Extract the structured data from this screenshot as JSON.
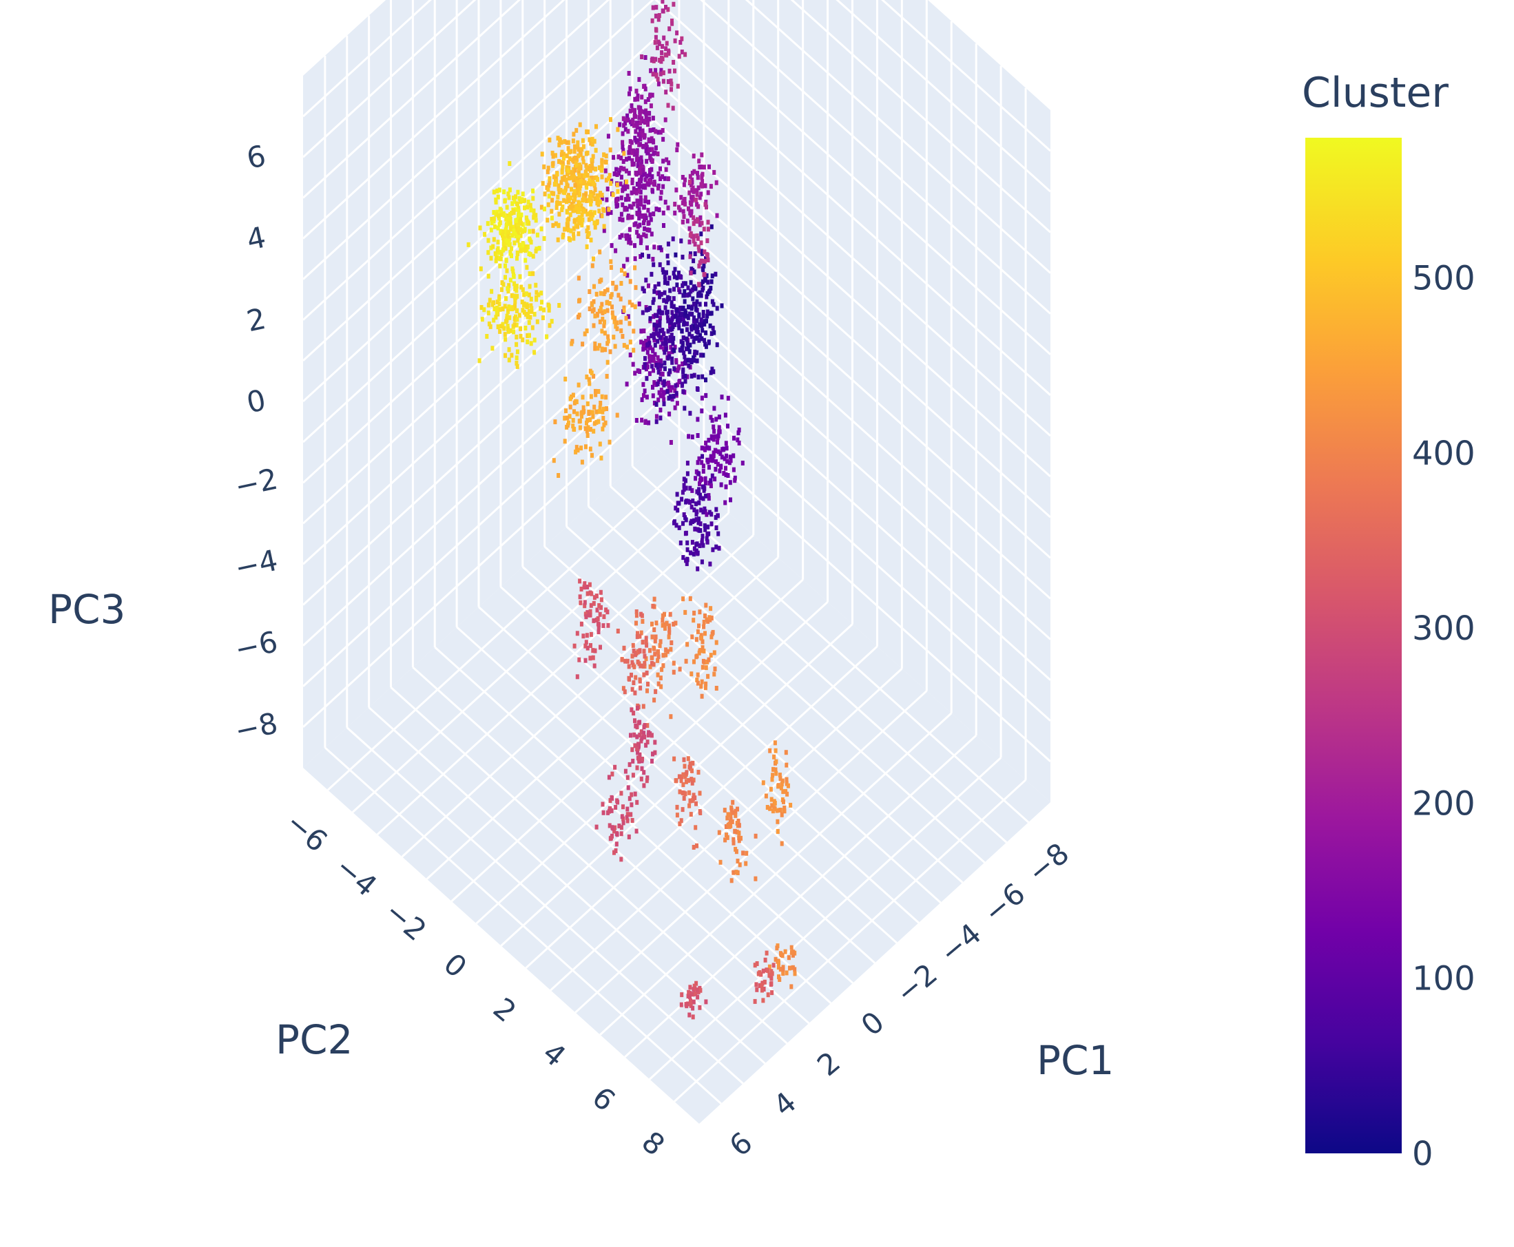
{
  "chart_data": {
    "type": "scatter3d",
    "xlabel": "PC1",
    "ylabel": "PC2",
    "zlabel": "PC3",
    "x_ticks": [
      "−8",
      "−6",
      "−4",
      "−2",
      "0",
      "2",
      "4",
      "6"
    ],
    "y_ticks": [
      "−6",
      "−4",
      "−2",
      "0",
      "2",
      "4",
      "6",
      "8"
    ],
    "z_ticks": [
      "−8",
      "−6",
      "−4",
      "−2",
      "0",
      "2",
      "4",
      "6"
    ],
    "xlim": [
      -9,
      7
    ],
    "ylim": [
      -7,
      9
    ],
    "zlim": [
      -9,
      8
    ],
    "colorbar": {
      "title": "Cluster",
      "range": [
        0,
        580
      ],
      "ticks": [
        "0",
        "100",
        "200",
        "300",
        "400",
        "500"
      ],
      "colorscale": "plasma"
    },
    "clusters": [
      {
        "x": -7,
        "y": -5,
        "z": -5,
        "c": 150,
        "spread": [
          0.7,
          0.7,
          1.2
        ],
        "n": 140
      },
      {
        "x": -6,
        "y": -5,
        "z": 0,
        "c": 160,
        "spread": [
          0.8,
          0.6,
          1.6
        ],
        "n": 220
      },
      {
        "x": -5,
        "y": -4,
        "z": 2,
        "c": 180,
        "spread": [
          0.6,
          0.6,
          1.4
        ],
        "n": 140
      },
      {
        "x": -5,
        "y": -3,
        "z": 5,
        "c": 240,
        "spread": [
          0.4,
          0.4,
          1.2
        ],
        "n": 70
      },
      {
        "x": -5,
        "y": -1,
        "z": -4,
        "c": 130,
        "spread": [
          0.6,
          0.6,
          1.0
        ],
        "n": 110
      },
      {
        "x": -4,
        "y": -2,
        "z": -1,
        "c": 60,
        "spread": [
          0.6,
          0.7,
          1.5
        ],
        "n": 200
      },
      {
        "x": -4,
        "y": -1,
        "z": 3,
        "c": 200,
        "spread": [
          0.5,
          0.5,
          1.0
        ],
        "n": 80
      },
      {
        "x": -3,
        "y": 0,
        "z": -4,
        "c": 70,
        "spread": [
          0.6,
          0.6,
          1.0
        ],
        "n": 110
      },
      {
        "x": -3,
        "y": 0,
        "z": 1,
        "c": 40,
        "spread": [
          0.6,
          0.6,
          1.3
        ],
        "n": 160
      },
      {
        "x": -2,
        "y": 1,
        "z": 4,
        "c": 250,
        "spread": [
          0.3,
          0.3,
          0.9
        ],
        "n": 40
      },
      {
        "x": -1,
        "y": -3,
        "z": 4,
        "c": 490,
        "spread": [
          1.0,
          0.8,
          0.6
        ],
        "n": 180
      },
      {
        "x": 0,
        "y": -2,
        "z": 4,
        "c": 510,
        "spread": [
          1.0,
          0.8,
          0.6
        ],
        "n": 180
      },
      {
        "x": 0,
        "y": -1,
        "z": 2,
        "c": 460,
        "spread": [
          0.8,
          0.8,
          0.8
        ],
        "n": 100
      },
      {
        "x": 2,
        "y": -3,
        "z": 4,
        "c": 560,
        "spread": [
          0.9,
          0.6,
          0.6
        ],
        "n": 220
      },
      {
        "x": 3,
        "y": -2,
        "z": 3,
        "c": 545,
        "spread": [
          0.9,
          0.8,
          0.7
        ],
        "n": 160
      },
      {
        "x": 2,
        "y": 0,
        "z": 1,
        "c": 470,
        "spread": [
          0.8,
          0.6,
          0.8
        ],
        "n": 90
      },
      {
        "x": 0,
        "y": 3,
        "z": -4,
        "c": 420,
        "spread": [
          0.4,
          0.4,
          1.0
        ],
        "n": 60
      },
      {
        "x": 2,
        "y": 3,
        "z": -3,
        "c": 400,
        "spread": [
          0.4,
          0.4,
          1.0
        ],
        "n": 60
      },
      {
        "x": 3,
        "y": 3,
        "z": -3,
        "c": 360,
        "spread": [
          0.4,
          0.4,
          1.0
        ],
        "n": 60
      },
      {
        "x": 4,
        "y": 2,
        "z": -2,
        "c": 320,
        "spread": [
          0.4,
          0.4,
          1.0
        ],
        "n": 60
      },
      {
        "x": 4,
        "y": 4,
        "z": -4,
        "c": 300,
        "spread": [
          0.4,
          0.4,
          1.0
        ],
        "n": 60
      },
      {
        "x": 0,
        "y": 6,
        "z": -6,
        "c": 430,
        "spread": [
          0.4,
          0.4,
          0.9
        ],
        "n": 50
      },
      {
        "x": 2,
        "y": 6,
        "z": -6,
        "c": 410,
        "spread": [
          0.4,
          0.4,
          0.9
        ],
        "n": 50
      },
      {
        "x": 3,
        "y": 5,
        "z": -5,
        "c": 370,
        "spread": [
          0.4,
          0.4,
          0.9
        ],
        "n": 50
      },
      {
        "x": 5,
        "y": 4,
        "z": -5,
        "c": 310,
        "spread": [
          0.4,
          0.4,
          0.9
        ],
        "n": 50
      },
      {
        "x": 2,
        "y": 8,
        "z": -8,
        "c": 420,
        "spread": [
          0.4,
          0.3,
          0.4
        ],
        "n": 30
      },
      {
        "x": 3,
        "y": 8,
        "z": -8,
        "c": 340,
        "spread": [
          0.4,
          0.3,
          0.4
        ],
        "n": 30
      },
      {
        "x": 5,
        "y": 7,
        "z": -8,
        "c": 320,
        "spread": [
          0.4,
          0.3,
          0.4
        ],
        "n": 30
      }
    ]
  }
}
